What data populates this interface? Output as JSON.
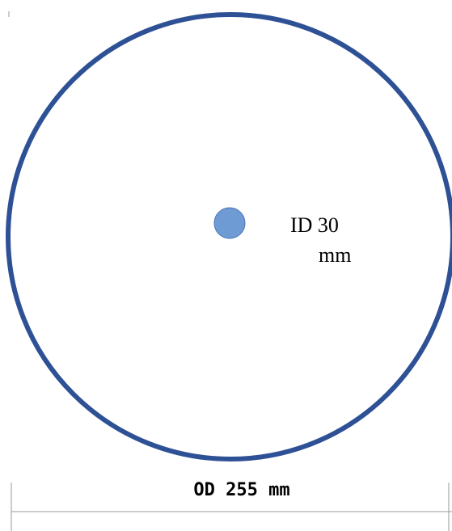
{
  "diagram": {
    "inner_label_line1": "ID 30",
    "inner_label_line2": "mm",
    "outer_label": "OD 255 mm"
  },
  "colors": {
    "outer_ring": "#2e5196",
    "inner_disc_fill": "#6f9bd4",
    "inner_disc_stroke": "#4a74b4",
    "dimension_line": "#9a9a9a",
    "text": "#000000"
  }
}
